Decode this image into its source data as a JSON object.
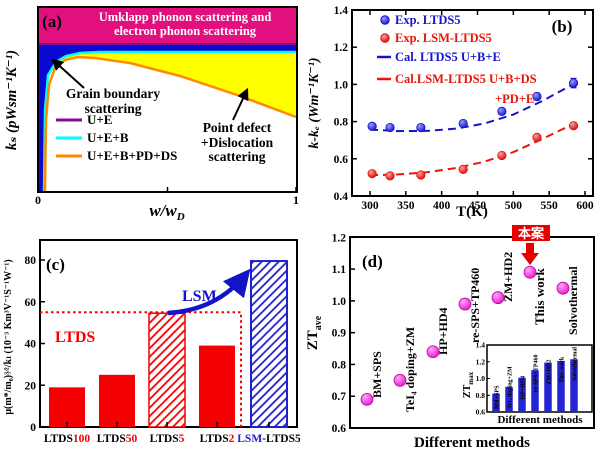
{
  "figure_title": "",
  "chart_data": [
    {
      "id": "a",
      "type": "area",
      "panel_label": "(a)",
      "ylabel": "kₛ (pWsm⁻¹K⁻¹)",
      "xlabel_main": "w/w",
      "xlabel_sub": "D",
      "xticks": [
        "0",
        "1"
      ],
      "top_band": {
        "lines": [
          "Umklapp phonon scattering and",
          "electron phonon scattering"
        ],
        "color": "#E2107E",
        "text_color": "#FFFFFF"
      },
      "region_colors": {
        "blue": "#0A0AD2",
        "yellow": "#FFFF00",
        "white": "#FFFFFF"
      },
      "annotations": [
        {
          "lines": [
            "Grain boundary",
            "scattering"
          ]
        },
        {
          "lines": [
            "Point defect",
            "+Dislocation",
            "scattering"
          ]
        }
      ],
      "legend": [
        {
          "label": "U+E",
          "color": "#7D0C8E"
        },
        {
          "label": "U+E+B",
          "color": "#00FFFF"
        },
        {
          "label": "U+E+B+PD+DS",
          "color": "#FF8A00"
        }
      ]
    },
    {
      "id": "b",
      "type": "scatter",
      "panel_label": "(b)",
      "xlabel": "T(K)",
      "ylabel": "k-kₑ (Wm⁻¹K⁻¹)",
      "xlim": [
        275,
        610
      ],
      "ylim": [
        0.4,
        1.4
      ],
      "xticks": [
        300,
        350,
        400,
        450,
        500,
        550,
        600
      ],
      "yticks": [
        "0.4",
        "0.6",
        "0.8",
        "1.0",
        "1.2",
        "1.4"
      ],
      "series": [
        {
          "name": "Exp. LTDS5",
          "kind": "points",
          "color": "#1515CC",
          "x": [
            303,
            328,
            371,
            430,
            484,
            533,
            584
          ],
          "y": [
            0.775,
            0.768,
            0.768,
            0.79,
            0.855,
            0.935,
            1.007
          ],
          "yerr": [
            0.012,
            0.01,
            0.012,
            0.012,
            0.016,
            0.018,
            0.025
          ]
        },
        {
          "name": "Exp. LSM-LTDS5",
          "kind": "points",
          "color": "#EA140A",
          "x": [
            303,
            328,
            371,
            430,
            484,
            533,
            584
          ],
          "y": [
            0.52,
            0.508,
            0.513,
            0.543,
            0.618,
            0.715,
            0.778
          ],
          "yerr": [
            0.01,
            0.01,
            0.01,
            0.01,
            0.012,
            0.012,
            0.014
          ]
        },
        {
          "name": "Cal. LTDS5 U+B+E",
          "kind": "dashed",
          "color": "#1515CC",
          "x": [
            300,
            340,
            380,
            420,
            460,
            500,
            540,
            588
          ],
          "y": [
            0.757,
            0.749,
            0.75,
            0.762,
            0.79,
            0.838,
            0.91,
            1.01
          ]
        },
        {
          "name": "Cal.LSM-LTDS5 U+B+DS",
          "name2": "+PD+E",
          "kind": "dashed",
          "color": "#EA140A",
          "x": [
            300,
            340,
            380,
            420,
            460,
            500,
            540,
            588
          ],
          "y": [
            0.512,
            0.516,
            0.528,
            0.55,
            0.585,
            0.636,
            0.706,
            0.795
          ]
        }
      ]
    },
    {
      "id": "c",
      "type": "bar",
      "panel_label": "(c)",
      "ylabel": "μ(m*/m₀)³⁄²/kₗ (10⁻³ Km³V⁻¹S⁻¹W⁻¹)",
      "ylim": [
        0,
        90
      ],
      "yticks": [
        0,
        20,
        40,
        60,
        80
      ],
      "categories": [
        {
          "pre": "LTDS",
          "suf": "100",
          "pre_color": "#000000",
          "suf_color": "#F50002"
        },
        {
          "pre": "LTDS",
          "suf": "50",
          "pre_color": "#000000",
          "suf_color": "#F50002"
        },
        {
          "pre": "LTDS",
          "suf": "5",
          "pre_color": "#000000",
          "suf_color": "#F50002"
        },
        {
          "pre": "LTDS",
          "suf": "2",
          "pre_color": "#000000",
          "suf_color": "#F50002"
        },
        {
          "pre": "LSM",
          "suf": "-LTDS5",
          "pre_color": "#2020CC",
          "suf_color": "#000000"
        }
      ],
      "values": [
        19,
        25,
        54.5,
        39,
        79.5
      ],
      "bar_styles": [
        "solid-red",
        "solid-red",
        "hatch-red",
        "solid-red",
        "hatch-blue"
      ],
      "colors": {
        "red": "#F50002",
        "blue": "#2020CC"
      },
      "ref_line": {
        "value": 55,
        "color": "#F50002"
      },
      "annotations": [
        {
          "text": "LTDS",
          "color": "#F50002"
        },
        {
          "text": "LSM",
          "color": "#1313C8"
        }
      ]
    },
    {
      "id": "d",
      "type": "scatter",
      "panel_label": "(d)",
      "ylabel": "ZT",
      "ylabel_sub": "ave",
      "xlabel": "Different methods",
      "ylim": [
        0.6,
        1.2
      ],
      "yticks": [
        "0.6",
        "0.7",
        "0.8",
        "0.9",
        "1.0",
        "1.1",
        "1.2"
      ],
      "methods": [
        "BM+SPS",
        "TeI₄ doping+ZM",
        "HP+HD4",
        "re-SPS+TP460",
        "ZM+HD2",
        "This work",
        "Solvothermal"
      ],
      "values": [
        0.69,
        0.75,
        0.84,
        0.99,
        1.01,
        1.09,
        1.04
      ],
      "marker_color": "#F316E0",
      "callout": {
        "text": "本案",
        "box_color": "#E60000",
        "text_color": "#FFFFFF",
        "target": "This work"
      },
      "inset": {
        "type": "bar",
        "ylabel": "ZT",
        "ylabel_sub": "max",
        "xlabel": "Different methods",
        "ylim": [
          0.6,
          1.4
        ],
        "yticks": [
          "0.6",
          "0.8",
          "1.0",
          "1.2",
          "1.4"
        ],
        "values": [
          0.82,
          0.9,
          1.01,
          1.1,
          1.19,
          1.21,
          1.23
        ],
        "bar_color": "#2525D5"
      }
    }
  ]
}
